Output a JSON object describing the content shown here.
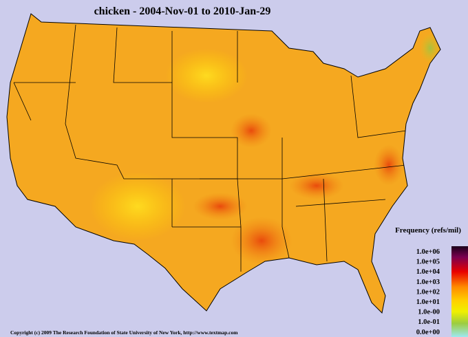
{
  "title": "chicken - 2004-Nov-01 to 2010-Jan-29",
  "legend": {
    "title": "Frequency (refs/mil)",
    "labels": [
      "1.0e+06",
      "1.0e+05",
      "1.0e+04",
      "1.0e+03",
      "1.0e+02",
      "1.0e+01",
      "1.0e-00",
      "1.0e-01",
      "0.0e+00"
    ]
  },
  "footer": "Copyright (c) 2009 The Research Foundation of State University of New York, http://www.textmap.com"
}
